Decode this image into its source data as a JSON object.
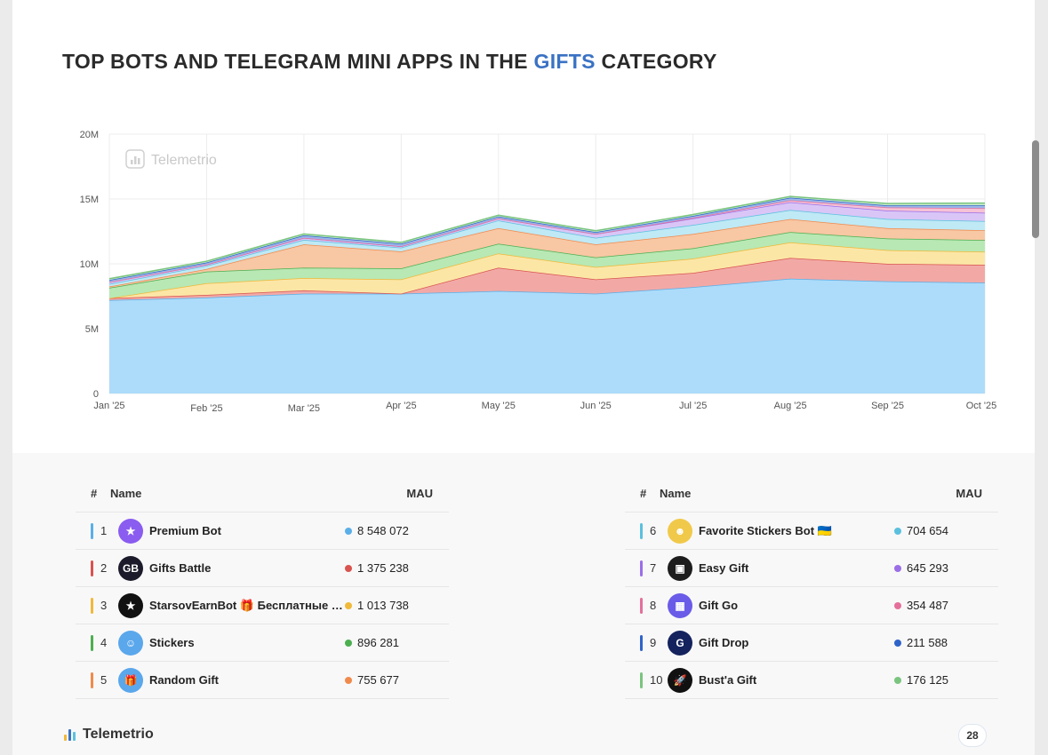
{
  "title": {
    "prefix": "TOP BOTS AND TELEGRAM MINI APPS IN THE ",
    "accent": "GIFTS",
    "suffix": " CATEGORY"
  },
  "watermark": "Telemetrio",
  "colors": {
    "accent": "#3a72c4"
  },
  "chart_data": {
    "type": "area",
    "stacked": true,
    "categories": [
      "Jan '25",
      "Feb '25",
      "Mar '25",
      "Apr '25",
      "May '25",
      "Jun '25",
      "Jul '25",
      "Aug '25",
      "Sep '25",
      "Oct '25"
    ],
    "y_ticks": [
      "0",
      "5M",
      "10M",
      "15M",
      "20M"
    ],
    "ylim": [
      0,
      20000000
    ],
    "grid": true,
    "series": [
      {
        "name": "Premium Bot",
        "color": "#5aafe8",
        "fill": "#acdcfa",
        "values": [
          7200000,
          7400000,
          7700000,
          7700000,
          7900000,
          7700000,
          8200000,
          8850000,
          8650000,
          8548072
        ]
      },
      {
        "name": "Gifts Battle",
        "color": "#d9534f",
        "fill": "#f2a9a6",
        "values": [
          150000,
          200000,
          250000,
          0,
          1800000,
          1100000,
          1100000,
          1600000,
          1350000,
          1375238
        ]
      },
      {
        "name": "StarsovEarnBot",
        "color": "#f0b93a",
        "fill": "#fbe6a6",
        "values": [
          0,
          900000,
          950000,
          1100000,
          1100000,
          950000,
          1100000,
          1200000,
          1050000,
          1013738
        ]
      },
      {
        "name": "Stickers",
        "color": "#4caf50",
        "fill": "#b8e8b4",
        "values": [
          800000,
          900000,
          800000,
          850000,
          750000,
          750000,
          800000,
          800000,
          900000,
          896281
        ]
      },
      {
        "name": "Random Gift",
        "color": "#f08a4b",
        "fill": "#f8c7a4",
        "values": [
          100000,
          200000,
          1800000,
          1300000,
          1200000,
          1000000,
          1100000,
          1000000,
          800000,
          755677
        ]
      },
      {
        "name": "Favorite Stickers Bot",
        "color": "#5bc0de",
        "fill": "#bfe9f5",
        "values": [
          200000,
          250000,
          350000,
          300000,
          600000,
          500000,
          700000,
          700000,
          700000,
          704654
        ]
      },
      {
        "name": "Easy Gift",
        "color": "#9b6ee8",
        "fill": "#d9c6f7",
        "values": [
          150000,
          100000,
          150000,
          100000,
          150000,
          300000,
          500000,
          600000,
          650000,
          645293
        ]
      },
      {
        "name": "Gift Go",
        "color": "#e46f9a",
        "fill": "#f6c2d6",
        "values": [
          0,
          0,
          0,
          0,
          0,
          0,
          50000,
          150000,
          250000,
          354487
        ]
      },
      {
        "name": "Gift Drop",
        "color": "#2f63c9",
        "fill": "#9cb6ea",
        "values": [
          150000,
          150000,
          200000,
          200000,
          150000,
          150000,
          150000,
          200000,
          150000,
          211588
        ]
      },
      {
        "name": "Bust'a Gift",
        "color": "#7ac47f",
        "fill": "#c9ebcb",
        "values": [
          100000,
          100000,
          100000,
          100000,
          100000,
          100000,
          100000,
          100000,
          150000,
          176125
        ]
      }
    ]
  },
  "table": {
    "headers": {
      "num": "#",
      "name": "Name",
      "mau": "MAU"
    },
    "left": [
      {
        "rank": "1",
        "name": "Premium Bot",
        "mau": "8 548 072",
        "color": "#5aafe8",
        "avatar": "★",
        "avatar_bg": "#8a5cf0",
        "icon": "star-icon"
      },
      {
        "rank": "2",
        "name": "Gifts Battle",
        "mau": "1 375 238",
        "color": "#d9534f",
        "avatar": "GB",
        "avatar_bg": "#1b1b2b",
        "icon": "gb-logo-icon"
      },
      {
        "rank": "3",
        "name": "StarsovEarnBot 🎁 Бесплатные П...",
        "mau": "1 013 738",
        "color": "#f0b93a",
        "avatar": "★",
        "avatar_bg": "#111111",
        "icon": "gold-star-icon"
      },
      {
        "rank": "4",
        "name": "Stickers",
        "mau": "896 281",
        "color": "#4caf50",
        "avatar": "☺",
        "avatar_bg": "#5aa7ec",
        "icon": "sticker-face-icon"
      },
      {
        "rank": "5",
        "name": "Random Gift",
        "mau": "755 677",
        "color": "#f08a4b",
        "avatar": "🎁",
        "avatar_bg": "#5aa7ec",
        "icon": "gift-box-icon"
      }
    ],
    "right": [
      {
        "rank": "6",
        "name": "Favorite Stickers Bot 🇺🇦",
        "mau": "704 654",
        "color": "#5bc0de",
        "avatar": "☻",
        "avatar_bg": "#f1c94a",
        "icon": "duck-sticker-icon"
      },
      {
        "rank": "7",
        "name": "Easy Gift",
        "mau": "645 293",
        "color": "#9b6ee8",
        "avatar": "▣",
        "avatar_bg": "#1d1d1d",
        "icon": "cube-gift-icon"
      },
      {
        "rank": "8",
        "name": "Gift Go",
        "mau": "354 487",
        "color": "#e46f9a",
        "avatar": "▦",
        "avatar_bg": "#6a5ce8",
        "icon": "purple-gift-icon"
      },
      {
        "rank": "9",
        "name": "Gift Drop",
        "mau": "211 588",
        "color": "#2f63c9",
        "avatar": "G",
        "avatar_bg": "#14235e",
        "icon": "gift-drop-logo-icon"
      },
      {
        "rank": "10",
        "name": "Bust'a Gift",
        "mau": "176 125",
        "color": "#7ac47f",
        "avatar": "🚀",
        "avatar_bg": "#111111",
        "icon": "rocket-icon"
      }
    ]
  },
  "footer": {
    "brand": "Telemetrio",
    "page": "28"
  }
}
